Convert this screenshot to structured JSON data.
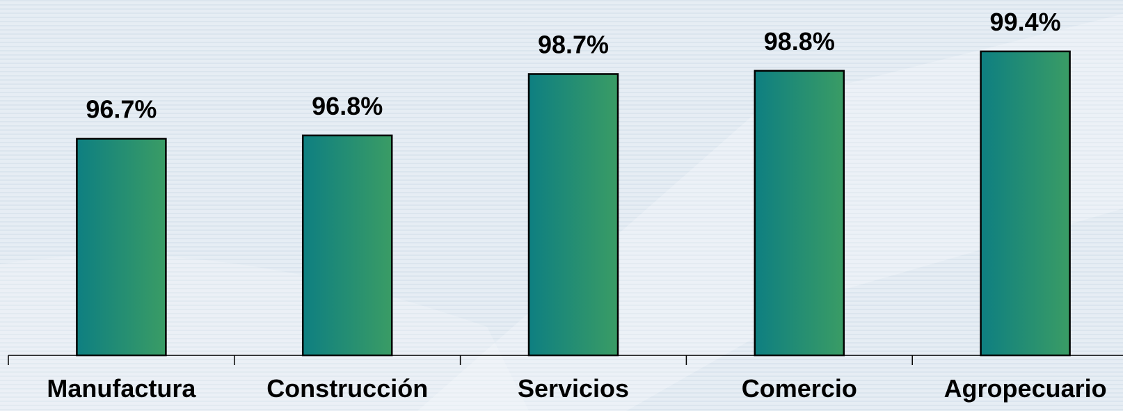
{
  "chart_data": {
    "type": "bar",
    "categories": [
      "Manufactura",
      "Construcción",
      "Servicios",
      "Comercio",
      "Agropecuario"
    ],
    "values": [
      96.7,
      96.8,
      98.7,
      98.8,
      99.4
    ],
    "value_labels": [
      "96.7%",
      "96.8%",
      "98.7%",
      "98.8%",
      "99.4%"
    ],
    "gradient": [
      "#0e7f81",
      "#3a9c65"
    ],
    "ylim": [
      90,
      100
    ]
  }
}
